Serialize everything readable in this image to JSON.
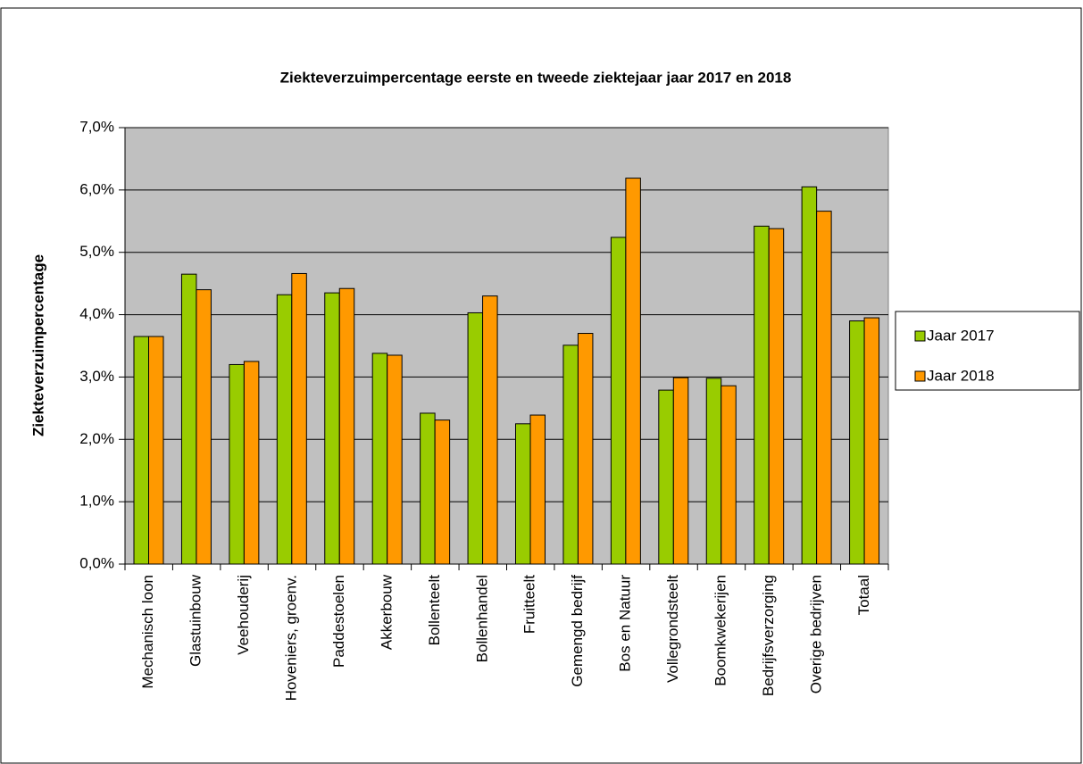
{
  "chart_data": {
    "type": "bar",
    "title": "Ziekteverzuimpercentage eerste en tweede ziektejaar jaar 2017 en 2018",
    "ylabel": "Ziekteverzuimpercentage",
    "categories": [
      "Mechanisch loon",
      "Glastuinbouw",
      "Veehouderij",
      "Hoveniers, groenv.",
      "Paddestoelen",
      "Akkerbouw",
      "Bollenteelt",
      "Bollenhandel",
      "Fruitteelt",
      "Gemengd bedrijf",
      "Bos en Natuur",
      "Vollegrondsteelt",
      "Boomkwekerijen",
      "Bedrijfsverzorging",
      "Overige bedrijven",
      "Totaal"
    ],
    "series": [
      {
        "name": "Jaar 2017",
        "color": "#99cc00",
        "values": [
          3.65,
          4.65,
          3.2,
          4.32,
          4.35,
          3.38,
          2.42,
          4.03,
          2.25,
          3.51,
          5.24,
          2.79,
          2.98,
          5.42,
          6.05,
          3.9
        ]
      },
      {
        "name": "Jaar 2018",
        "color": "#ff9900",
        "values": [
          3.65,
          4.4,
          3.25,
          4.66,
          4.42,
          3.35,
          2.31,
          4.3,
          2.39,
          3.7,
          6.19,
          2.99,
          2.86,
          5.38,
          5.66,
          3.95
        ]
      }
    ],
    "ylim": [
      0,
      7
    ],
    "yticks": [
      {
        "value": 0,
        "label": "0,0%"
      },
      {
        "value": 1,
        "label": "1,0%"
      },
      {
        "value": 2,
        "label": "2,0%"
      },
      {
        "value": 3,
        "label": "3,0%"
      },
      {
        "value": 4,
        "label": "4,0%"
      },
      {
        "value": 5,
        "label": "5,0%"
      },
      {
        "value": 6,
        "label": "6,0%"
      },
      {
        "value": 7,
        "label": "7,0%"
      }
    ],
    "grid": true,
    "plot_background": "#c0c0c0",
    "legend": "right"
  }
}
